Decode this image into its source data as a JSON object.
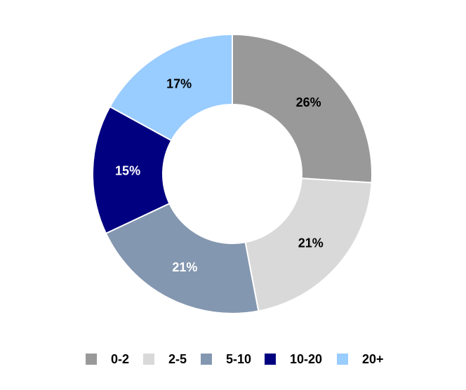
{
  "chart_data": {
    "type": "pie",
    "variant": "donut",
    "title": "",
    "categories": [
      "0-2",
      "2-5",
      "5-10",
      "10-20",
      "20+"
    ],
    "values": [
      26,
      21,
      21,
      15,
      17
    ],
    "value_labels": [
      "26%",
      "21%",
      "21%",
      "15%",
      "17%"
    ],
    "colors": [
      "#999999",
      "#d9d9d9",
      "#8497b0",
      "#000080",
      "#99ccff"
    ],
    "label_colors": [
      "#000000",
      "#000000",
      "#ffffff",
      "#ffffff",
      "#000000"
    ],
    "legend_position": "bottom"
  }
}
